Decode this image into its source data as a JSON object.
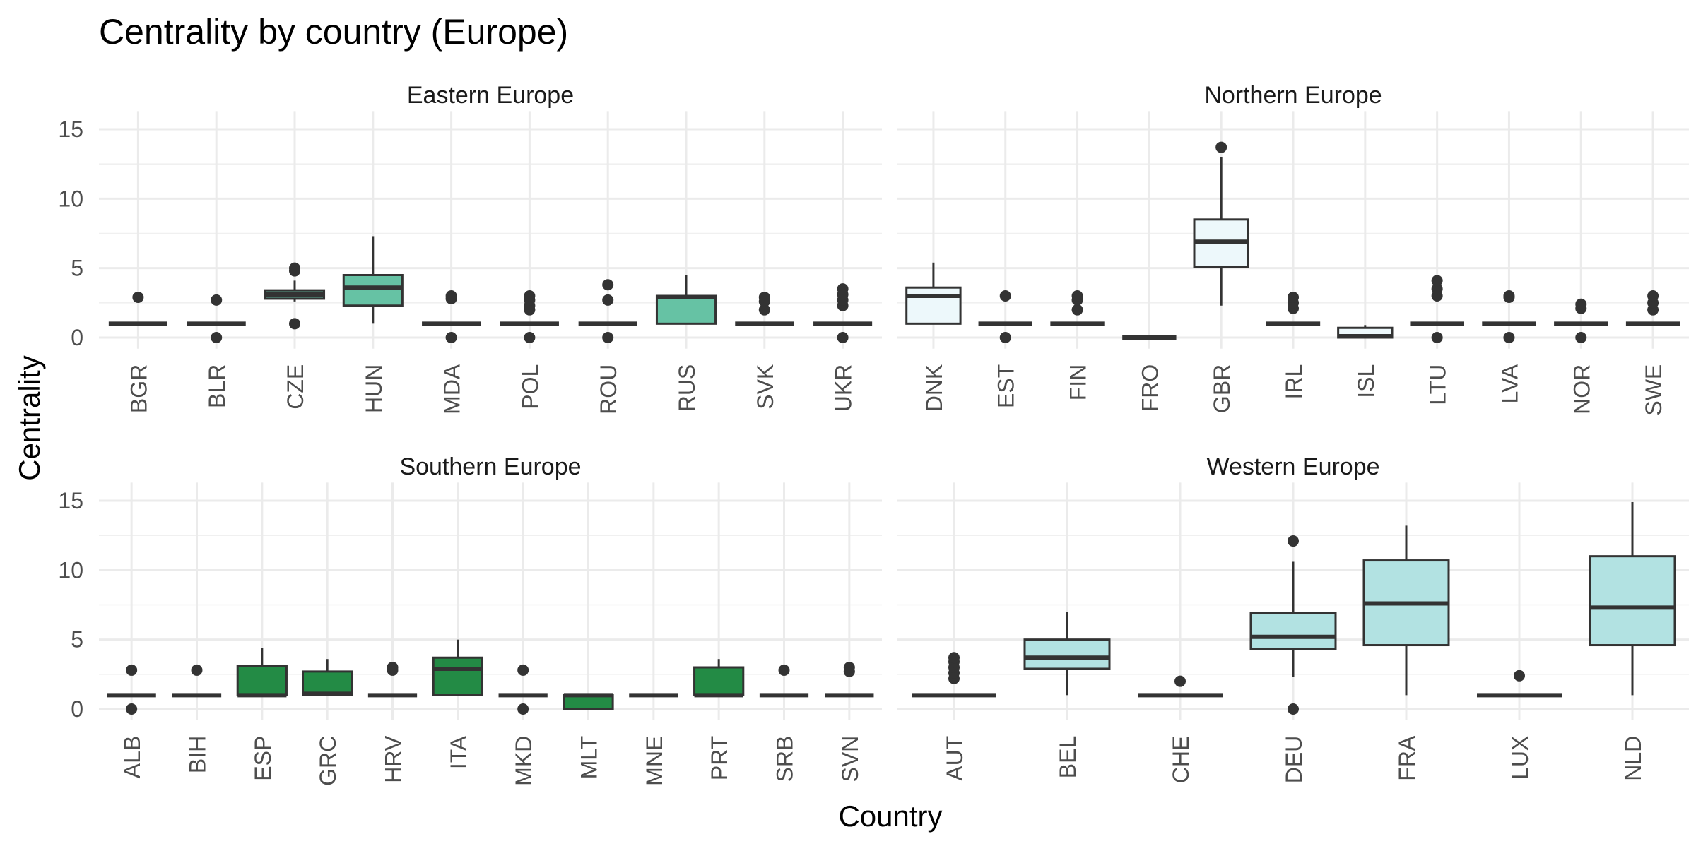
{
  "chart_data": {
    "type": "boxplot",
    "title": "Centrality by country (Europe)",
    "xlabel": "Country",
    "ylabel": "Centrality",
    "ylim": [
      -0.8,
      16.3
    ],
    "yticks": [
      0,
      5,
      10,
      15
    ],
    "grid": true,
    "legend": "none",
    "panels": [
      {
        "name": "Eastern Europe",
        "color": "#66c2a4",
        "categories": [
          "BGR",
          "BLR",
          "CZE",
          "HUN",
          "MDA",
          "POL",
          "ROU",
          "RUS",
          "SVK",
          "UKR"
        ],
        "boxes": [
          {
            "q1": 1,
            "median": 1,
            "q3": 1,
            "whisker_low": 1,
            "whisker_high": 1,
            "outliers": [
              2.9
            ]
          },
          {
            "q1": 1,
            "median": 1,
            "q3": 1,
            "whisker_low": 1,
            "whisker_high": 1,
            "outliers": [
              0,
              2.7
            ]
          },
          {
            "q1": 2.8,
            "median": 3.1,
            "q3": 3.4,
            "whisker_low": 2.6,
            "whisker_high": 4.1,
            "outliers": [
              1,
              4.8,
              5
            ]
          },
          {
            "q1": 2.3,
            "median": 3.6,
            "q3": 4.5,
            "whisker_low": 1,
            "whisker_high": 7.3,
            "outliers": []
          },
          {
            "q1": 1,
            "median": 1,
            "q3": 1,
            "whisker_low": 1,
            "whisker_high": 1,
            "outliers": [
              0,
              2.8,
              3
            ]
          },
          {
            "q1": 1,
            "median": 1,
            "q3": 1,
            "whisker_low": 1,
            "whisker_high": 1,
            "outliers": [
              0,
              2,
              2.3,
              2.7,
              3
            ]
          },
          {
            "q1": 1,
            "median": 1,
            "q3": 1,
            "whisker_low": 1,
            "whisker_high": 1,
            "outliers": [
              0,
              2.7,
              3.8
            ]
          },
          {
            "q1": 1,
            "median": 2.9,
            "q3": 3,
            "whisker_low": 1,
            "whisker_high": 4.5,
            "outliers": []
          },
          {
            "q1": 1,
            "median": 1,
            "q3": 1,
            "whisker_low": 1,
            "whisker_high": 1,
            "outliers": [
              2,
              2.6,
              2.9
            ]
          },
          {
            "q1": 1,
            "median": 1,
            "q3": 1,
            "whisker_low": 1,
            "whisker_high": 1,
            "outliers": [
              0,
              2.3,
              2.7,
              3.1,
              3.5
            ]
          }
        ]
      },
      {
        "name": "Northern Europe",
        "color": "#edf8fb",
        "categories": [
          "DNK",
          "EST",
          "FIN",
          "FRO",
          "GBR",
          "IRL",
          "ISL",
          "LTU",
          "LVA",
          "NOR",
          "SWE"
        ],
        "boxes": [
          {
            "q1": 1,
            "median": 3,
            "q3": 3.6,
            "whisker_low": 1,
            "whisker_high": 5.4,
            "outliers": []
          },
          {
            "q1": 1,
            "median": 1,
            "q3": 1,
            "whisker_low": 1,
            "whisker_high": 1,
            "outliers": [
              0,
              3
            ]
          },
          {
            "q1": 1,
            "median": 1,
            "q3": 1,
            "whisker_low": 1,
            "whisker_high": 1,
            "outliers": [
              2,
              2.7,
              3
            ]
          },
          {
            "q1": 0,
            "median": 0,
            "q3": 0,
            "whisker_low": 0,
            "whisker_high": 0,
            "outliers": []
          },
          {
            "q1": 5.1,
            "median": 6.9,
            "q3": 8.5,
            "whisker_low": 2.3,
            "whisker_high": 13,
            "outliers": [
              13.7
            ]
          },
          {
            "q1": 1,
            "median": 1,
            "q3": 1,
            "whisker_low": 1,
            "whisker_high": 1,
            "outliers": [
              2.1,
              2.5,
              2.9
            ]
          },
          {
            "q1": 0,
            "median": 0.1,
            "q3": 0.7,
            "whisker_low": 0,
            "whisker_high": 0.9,
            "outliers": []
          },
          {
            "q1": 1,
            "median": 1,
            "q3": 1,
            "whisker_low": 1,
            "whisker_high": 1,
            "outliers": [
              0,
              3,
              3.5,
              4.1
            ]
          },
          {
            "q1": 1,
            "median": 1,
            "q3": 1,
            "whisker_low": 1,
            "whisker_high": 1,
            "outliers": [
              0,
              2.9,
              3
            ]
          },
          {
            "q1": 1,
            "median": 1,
            "q3": 1,
            "whisker_low": 1,
            "whisker_high": 1,
            "outliers": [
              0,
              2.1,
              2.4
            ]
          },
          {
            "q1": 1,
            "median": 1,
            "q3": 1,
            "whisker_low": 1,
            "whisker_high": 1,
            "outliers": [
              2,
              2.5,
              3
            ]
          }
        ]
      },
      {
        "name": "Southern Europe",
        "color": "#238b45",
        "categories": [
          "ALB",
          "BIH",
          "ESP",
          "GRC",
          "HRV",
          "ITA",
          "MKD",
          "MLT",
          "MNE",
          "PRT",
          "SRB",
          "SVN"
        ],
        "boxes": [
          {
            "q1": 1,
            "median": 1,
            "q3": 1,
            "whisker_low": 1,
            "whisker_high": 1,
            "outliers": [
              0,
              2.8
            ]
          },
          {
            "q1": 1,
            "median": 1,
            "q3": 1,
            "whisker_low": 1,
            "whisker_high": 1,
            "outliers": [
              2.8
            ]
          },
          {
            "q1": 1,
            "median": 1,
            "q3": 3.1,
            "whisker_low": 1,
            "whisker_high": 4.4,
            "outliers": []
          },
          {
            "q1": 1,
            "median": 1.1,
            "q3": 2.7,
            "whisker_low": 1,
            "whisker_high": 3.6,
            "outliers": []
          },
          {
            "q1": 1,
            "median": 1,
            "q3": 1,
            "whisker_low": 1,
            "whisker_high": 1,
            "outliers": [
              2.8,
              3
            ]
          },
          {
            "q1": 1,
            "median": 2.9,
            "q3": 3.7,
            "whisker_low": 1,
            "whisker_high": 5,
            "outliers": []
          },
          {
            "q1": 1,
            "median": 1,
            "q3": 1,
            "whisker_low": 1,
            "whisker_high": 1,
            "outliers": [
              0,
              2.8
            ]
          },
          {
            "q1": 0,
            "median": 1,
            "q3": 1,
            "whisker_low": 0,
            "whisker_high": 1,
            "outliers": []
          },
          {
            "q1": 1,
            "median": 1,
            "q3": 1,
            "whisker_low": 1,
            "whisker_high": 1,
            "outliers": []
          },
          {
            "q1": 1,
            "median": 1,
            "q3": 3,
            "whisker_low": 1,
            "whisker_high": 3.6,
            "outliers": []
          },
          {
            "q1": 1,
            "median": 1,
            "q3": 1,
            "whisker_low": 1,
            "whisker_high": 1,
            "outliers": [
              2.8
            ]
          },
          {
            "q1": 1,
            "median": 1,
            "q3": 1,
            "whisker_low": 1,
            "whisker_high": 1,
            "outliers": [
              2.7,
              3
            ]
          }
        ]
      },
      {
        "name": "Western Europe",
        "color": "#b2e2e2",
        "categories": [
          "AUT",
          "BEL",
          "CHE",
          "DEU",
          "FRA",
          "LUX",
          "NLD"
        ],
        "boxes": [
          {
            "q1": 1,
            "median": 1,
            "q3": 1,
            "whisker_low": 1,
            "whisker_high": 1,
            "outliers": [
              2.2,
              2.6,
              3,
              3.4,
              3.7
            ]
          },
          {
            "q1": 2.9,
            "median": 3.7,
            "q3": 5,
            "whisker_low": 1,
            "whisker_high": 7,
            "outliers": []
          },
          {
            "q1": 1,
            "median": 1,
            "q3": 1,
            "whisker_low": 1,
            "whisker_high": 1,
            "outliers": [
              2
            ]
          },
          {
            "q1": 4.3,
            "median": 5.2,
            "q3": 6.9,
            "whisker_low": 2.3,
            "whisker_high": 10.6,
            "outliers": [
              0,
              12.1
            ]
          },
          {
            "q1": 4.6,
            "median": 7.6,
            "q3": 10.7,
            "whisker_low": 1,
            "whisker_high": 13.2,
            "outliers": []
          },
          {
            "q1": 1,
            "median": 1,
            "q3": 1,
            "whisker_low": 1,
            "whisker_high": 1,
            "outliers": [
              2.4
            ]
          },
          {
            "q1": 4.6,
            "median": 7.3,
            "q3": 11,
            "whisker_low": 1,
            "whisker_high": 14.9,
            "outliers": []
          }
        ]
      }
    ]
  }
}
